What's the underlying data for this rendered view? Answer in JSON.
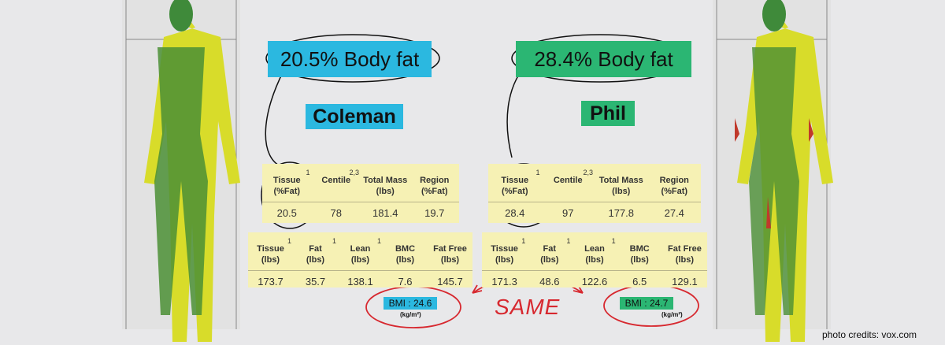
{
  "left": {
    "headline": "20.5% Body fat",
    "name": "Coleman",
    "table1": {
      "headers": [
        {
          "lines": [
            "Tissue",
            "(%Fat)"
          ],
          "sup": "1"
        },
        {
          "lines": [
            "Centile"
          ],
          "sup": "2,3"
        },
        {
          "lines": [
            "Total Mass",
            "(lbs)"
          ]
        },
        {
          "lines": [
            "Region",
            "(%Fat)"
          ]
        }
      ],
      "values": [
        20.5,
        78,
        181.4,
        19.7
      ]
    },
    "table2": {
      "headers": [
        {
          "lines": [
            "Tissue",
            "(lbs)"
          ],
          "sup": "1"
        },
        {
          "lines": [
            "Fat",
            "(lbs)"
          ],
          "sup": "1"
        },
        {
          "lines": [
            "Lean",
            "(lbs)"
          ],
          "sup": "1"
        },
        {
          "lines": [
            "BMC",
            "(lbs)"
          ]
        },
        {
          "lines": [
            "Fat Free",
            "(lbs)"
          ]
        }
      ],
      "values": [
        173.7,
        35.7,
        138.1,
        7.6,
        145.7
      ]
    },
    "bmi": "BMI : 24.6",
    "bmi_unit": "(kg/m²)"
  },
  "right": {
    "headline": "28.4% Body fat",
    "name": "Phil",
    "table1": {
      "headers": [
        {
          "lines": [
            "Tissue",
            "(%Fat)"
          ],
          "sup": "1"
        },
        {
          "lines": [
            "Centile"
          ],
          "sup": "2,3"
        },
        {
          "lines": [
            "Total Mass",
            "(lbs)"
          ]
        },
        {
          "lines": [
            "Region",
            "(%Fat)"
          ]
        }
      ],
      "values": [
        28.4,
        97,
        177.8,
        27.4
      ]
    },
    "table2": {
      "headers": [
        {
          "lines": [
            "Tissue",
            "(lbs)"
          ],
          "sup": "1"
        },
        {
          "lines": [
            "Fat",
            "(lbs)"
          ],
          "sup": "1"
        },
        {
          "lines": [
            "Lean",
            "(lbs)"
          ],
          "sup": "1"
        },
        {
          "lines": [
            "BMC",
            "(lbs)"
          ]
        },
        {
          "lines": [
            "Fat Free",
            "(lbs)"
          ]
        }
      ],
      "values": [
        171.3,
        48.6,
        122.6,
        6.5,
        129.1
      ]
    },
    "bmi": "BMI : 24.7",
    "bmi_unit": "(kg/m²)"
  },
  "same": "SAME",
  "credit": "photo credits: vox.com"
}
